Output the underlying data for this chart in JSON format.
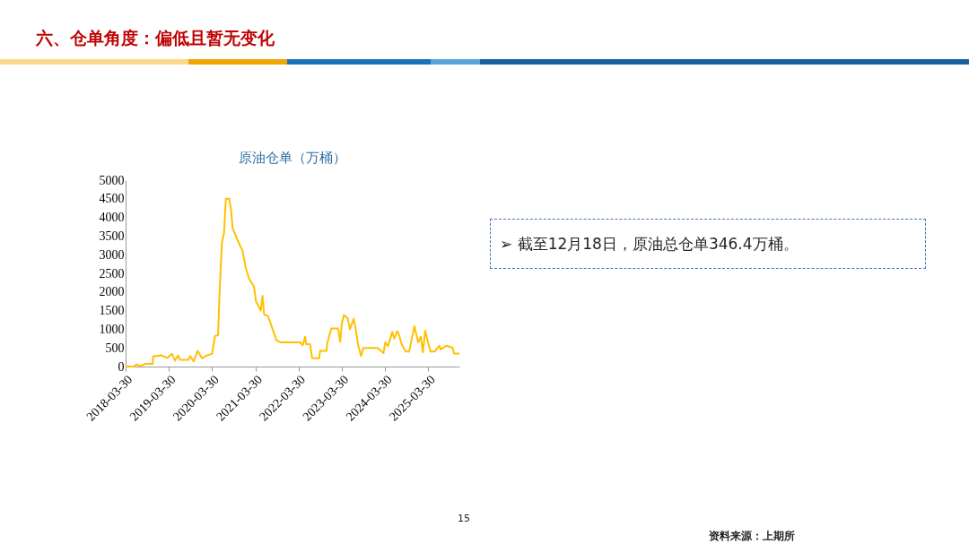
{
  "chart_data": {
    "type": "line",
    "title": "原油仓单（万桶）",
    "x": [
      "2018-03-30",
      "2018-06-13",
      "2018-06-25",
      "2018-08-03",
      "2018-09-10",
      "2018-11-14",
      "2018-11-18",
      "2019-01-26",
      "2019-03-17",
      "2019-04-26",
      "2019-05-22",
      "2019-06-17",
      "2019-07-02",
      "2019-09-13",
      "2019-09-25",
      "2019-10-27",
      "2019-11-28",
      "2020-01-05",
      "2020-02-13",
      "2020-03-30",
      "2020-04-23",
      "2020-05-19",
      "2020-06-01",
      "2020-06-20",
      "2020-07-09",
      "2020-07-24",
      "2020-08-21",
      "2020-09-06",
      "2020-09-20",
      "2020-10-23",
      "2020-12-12",
      "2021-01-08",
      "2021-02-06",
      "2021-03-18",
      "2021-04-05",
      "2021-05-15",
      "2021-05-30",
      "2021-06-12",
      "2021-07-16",
      "2021-08-23",
      "2021-09-25",
      "2021-11-02",
      "2022-04-10",
      "2022-05-05",
      "2022-05-24",
      "2022-06-03",
      "2022-07-06",
      "2022-07-23",
      "2022-09-20",
      "2022-09-28",
      "2022-11-22",
      "2022-11-28",
      "2023-01-01",
      "2023-02-27",
      "2023-03-17",
      "2023-03-30",
      "2023-04-17",
      "2023-05-19",
      "2023-06-08",
      "2023-07-08",
      "2023-07-27",
      "2023-08-14",
      "2023-09-09",
      "2023-09-28",
      "2024-01-27",
      "2024-03-17",
      "2024-04-01",
      "2024-04-25",
      "2024-05-30",
      "2024-06-16",
      "2024-07-12",
      "2024-07-24",
      "2024-08-17",
      "2024-09-20",
      "2024-10-20",
      "2024-11-07",
      "2024-12-03",
      "2025-01-04",
      "2025-01-26",
      "2025-02-13",
      "2025-03-04",
      "2025-04-01",
      "2025-04-19",
      "2025-05-22",
      "2025-07-02",
      "2025-07-13",
      "2025-09-02",
      "2025-10-23",
      "2025-11-03",
      "2025-12-18"
    ],
    "series": [
      {
        "color": "#ffc000",
        "values": [
          0,
          0,
          60,
          20,
          70,
          70,
          270,
          300,
          230,
          340,
          160,
          300,
          180,
          180,
          280,
          140,
          420,
          220,
          300,
          340,
          820,
          840,
          2000,
          3300,
          3600,
          4500,
          4500,
          4200,
          3700,
          3450,
          3100,
          2650,
          2350,
          2150,
          1750,
          1500,
          1900,
          1400,
          1350,
          1000,
          700,
          650,
          650,
          570,
          800,
          600,
          600,
          220,
          220,
          420,
          420,
          630,
          1020,
          1020,
          660,
          1150,
          1380,
          1300,
          1000,
          1280,
          1000,
          600,
          280,
          500,
          500,
          360,
          650,
          550,
          930,
          750,
          950,
          870,
          600,
          400,
          400,
          680,
          1080,
          650,
          800,
          380,
          960,
          600,
          400,
          400,
          560,
          460,
          560,
          500,
          350,
          346.4
        ]
      }
    ],
    "xlim": [
      "2018-03-30",
      "2025-12-18"
    ],
    "xticks": [
      "2018-03-30",
      "2019-03-30",
      "2020-03-30",
      "2021-03-30",
      "2022-03-30",
      "2023-03-30",
      "2024-03-30",
      "2025-03-30"
    ],
    "ylim": [
      0,
      5000
    ],
    "yticks": [
      0,
      500,
      1000,
      1500,
      2000,
      2500,
      3000,
      3500,
      4000,
      4500,
      5000
    ],
    "grid": false,
    "legend": false,
    "marker": "none",
    "line_style": "solid",
    "annotations": [
      "六、仓单角度：偏低且暂无变化",
      "➢ 截至12月18日，原油总仓单346.4万桶。",
      "15",
      "资料来源：上期所"
    ]
  }
}
